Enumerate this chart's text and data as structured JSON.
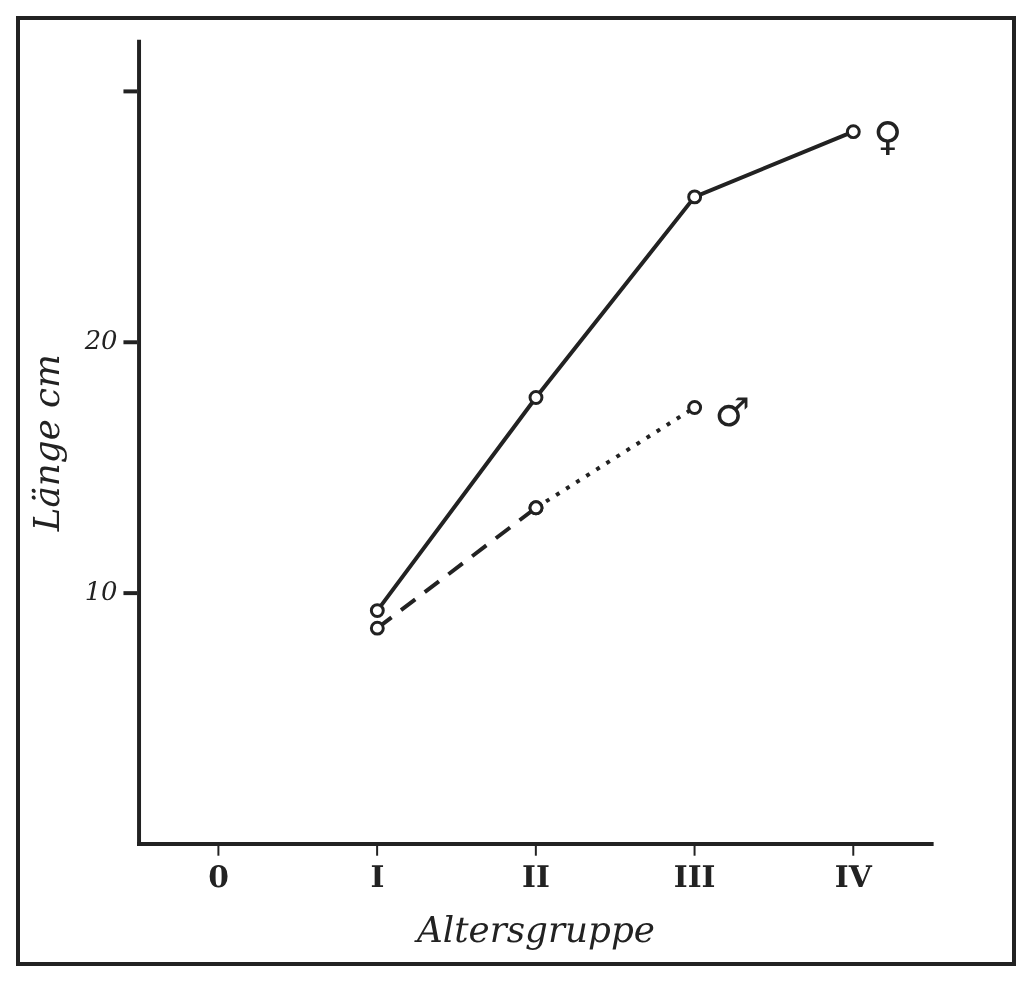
{
  "chart_data": {
    "type": "line",
    "xlabel": "Altersgruppe",
    "ylabel": "Länge cm",
    "categories": [
      "0",
      "I",
      "II",
      "III",
      "IV"
    ],
    "series": [
      {
        "name": "♀",
        "color": "#222222",
        "values": [
          null,
          9.3,
          17.8,
          25.8,
          28.4
        ],
        "line_style": "solid",
        "marker": "circle"
      },
      {
        "color": "#222222",
        "values": [
          null,
          8.6,
          13.4,
          null,
          null
        ],
        "line_style": "dashed",
        "marker": "circle"
      },
      {
        "name": "♂",
        "color": "#222222",
        "values": [
          null,
          null,
          13.4,
          17.4,
          null
        ],
        "line_style": "dotted",
        "marker": "circle"
      }
    ],
    "ylim": [
      0,
      32
    ],
    "yticks": [
      10,
      20,
      {
        "value": 30,
        "label": null
      }
    ],
    "grid": false,
    "legend": false
  }
}
